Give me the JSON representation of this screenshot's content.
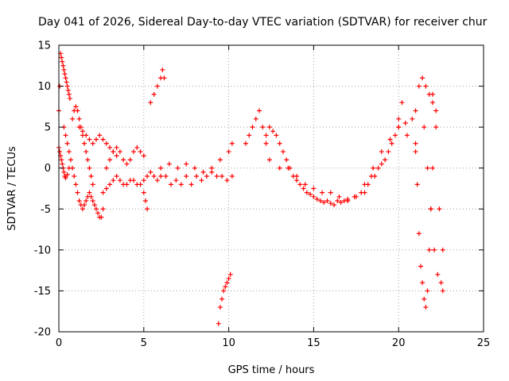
{
  "chart_data": {
    "type": "scatter",
    "title": "Day 041 of 2026, Sidereal Day-to-day VTEC variation (SDTVAR) for receiver chur",
    "xlabel": "GPS time / hours",
    "ylabel": "SDTVAR / TECUs",
    "xlim": [
      0,
      25
    ],
    "ylim": [
      -20,
      15
    ],
    "xticks": [
      0,
      5,
      10,
      15,
      20,
      25
    ],
    "yticks": [
      -20,
      -15,
      -10,
      -5,
      0,
      5,
      10,
      15
    ],
    "xtick_labels": [
      "0",
      "5",
      "10",
      "15",
      "20",
      "25"
    ],
    "ytick_labels": [
      "-20",
      "-15",
      "-10",
      "-5",
      "0",
      "5",
      "10",
      "15"
    ],
    "grid": true,
    "marker": "+",
    "color": "#ff0000",
    "series": [
      {
        "name": "s1",
        "x": [
          0.0,
          0.05,
          0.1,
          0.15,
          0.2,
          0.25,
          0.3,
          0.35,
          0.4,
          0.45,
          0.5,
          0.55,
          0.6,
          0.65
        ],
        "y": [
          7,
          10,
          14,
          13.5,
          13,
          12.5,
          12,
          11.5,
          11,
          10.5,
          10,
          9.5,
          9,
          8.5
        ]
      },
      {
        "name": "s2",
        "x": [
          0.0,
          0.05,
          0.1,
          0.15,
          0.2,
          0.25,
          0.3,
          0.35,
          0.4,
          0.5,
          0.6
        ],
        "y": [
          2.5,
          2,
          1.5,
          1,
          0.5,
          0,
          -0.5,
          -1,
          -1.2,
          -0.8,
          0
        ]
      },
      {
        "name": "s3",
        "x": [
          0.3,
          0.4,
          0.5,
          0.6,
          0.7,
          0.8,
          0.9,
          1.0,
          1.1,
          1.2,
          1.3,
          1.4,
          1.5,
          1.6,
          1.7,
          1.8,
          1.9,
          2.0,
          2.1,
          2.2,
          2.3,
          2.4,
          2.5,
          2.6
        ],
        "y": [
          5,
          4,
          3,
          2,
          1,
          0,
          -1,
          -2,
          -3,
          -4,
          -4.5,
          -5,
          -4.5,
          -4,
          -3.5,
          -3,
          -3.5,
          -4,
          -4.5,
          -5,
          -5.5,
          -6,
          -6,
          -5
        ]
      },
      {
        "name": "s4",
        "x": [
          0.8,
          0.9,
          1.0,
          1.1,
          1.2,
          1.3,
          1.4,
          1.5,
          1.6,
          1.7,
          1.8,
          1.9,
          2.0
        ],
        "y": [
          6,
          7,
          7.5,
          7,
          6,
          5,
          4,
          3,
          2,
          1,
          0,
          -1,
          -2
        ]
      },
      {
        "name": "s5",
        "x": [
          1.2,
          1.4,
          1.6,
          1.8,
          2.0,
          2.2,
          2.4,
          2.6,
          2.8,
          3.0,
          3.2,
          3.4
        ],
        "y": [
          5,
          4.5,
          4,
          3.5,
          3,
          3.5,
          4,
          3.5,
          3,
          2.5,
          2,
          1.5
        ]
      },
      {
        "name": "s6",
        "x": [
          2.6,
          2.8,
          3.0,
          3.2,
          3.4,
          3.6,
          3.8,
          4.0,
          4.2,
          4.4,
          4.6,
          4.8,
          5.0,
          5.2,
          5.4,
          5.6,
          5.8,
          6.0
        ],
        "y": [
          -3,
          -2.5,
          -2,
          -1.5,
          -1,
          -1.5,
          -2,
          -2,
          -1.5,
          -1.5,
          -2,
          -2,
          -1.5,
          -1,
          -0.5,
          -1,
          -1.5,
          -1
        ]
      },
      {
        "name": "s7",
        "x": [
          2.8,
          3.0,
          3.2,
          3.4,
          3.6,
          3.8,
          4.0,
          4.2,
          4.4,
          4.6,
          4.8,
          5.0
        ],
        "y": [
          0,
          1,
          2,
          2.5,
          2,
          1,
          0.5,
          1,
          2,
          2.5,
          2,
          1.5
        ]
      },
      {
        "name": "s8",
        "x": [
          5.0,
          5.1,
          5.2
        ],
        "y": [
          -3,
          -4,
          -5
        ]
      },
      {
        "name": "s9",
        "x": [
          5.4,
          5.6,
          5.8,
          6.0,
          6.1,
          6.2
        ],
        "y": [
          8,
          9,
          10,
          11,
          12,
          11
        ]
      },
      {
        "name": "s10",
        "x": [
          6.0,
          6.3,
          6.6,
          6.9,
          7.2,
          7.5,
          7.8,
          8.1,
          8.4,
          8.7,
          9.0,
          9.3,
          9.6,
          9.9,
          10.2
        ],
        "y": [
          0,
          -1,
          -2,
          -1.5,
          -2,
          -1,
          -2,
          -1,
          -1.5,
          -1,
          -0.5,
          -1,
          -1,
          -1.5,
          -1
        ]
      },
      {
        "name": "s11",
        "x": [
          6.5,
          7.0,
          7.5,
          8.0,
          8.5,
          9.0,
          9.5,
          10.0,
          10.2
        ],
        "y": [
          0.5,
          0,
          0.5,
          0,
          -0.5,
          0,
          1,
          2,
          3
        ]
      },
      {
        "name": "s12",
        "x": [
          9.4,
          9.5,
          9.6,
          9.7,
          9.8,
          9.9,
          10.0,
          10.1
        ],
        "y": [
          -19,
          -17,
          -16,
          -15,
          -14.5,
          -14,
          -13.5,
          -13
        ]
      },
      {
        "name": "s13",
        "x": [
          11.0,
          11.2,
          11.4,
          11.6,
          11.8,
          12.0,
          12.2
        ],
        "y": [
          3,
          4,
          5,
          6,
          7,
          5,
          3
        ]
      },
      {
        "name": "s14",
        "x": [
          12.2,
          12.4,
          12.6,
          12.8,
          13.0,
          13.2,
          13.4,
          13.6,
          13.8,
          14.0,
          14.2,
          14.4,
          14.6,
          14.8,
          15.0,
          15.2,
          15.4,
          15.6,
          15.8,
          16.0,
          16.2,
          16.4,
          16.6,
          16.8,
          17.0
        ],
        "y": [
          4,
          5,
          4.5,
          4,
          3,
          2,
          1,
          0,
          -1,
          -1.5,
          -2,
          -2.5,
          -3,
          -3.2,
          -3.5,
          -3.8,
          -4,
          -4.2,
          -4,
          -4.3,
          -4.5,
          -4,
          -4.2,
          -4,
          -3.8
        ]
      },
      {
        "name": "s15",
        "x": [
          12.4,
          13.0,
          13.5,
          14.0,
          14.5,
          15.0,
          15.5,
          16.0,
          16.5,
          17.0,
          17.5,
          18.0
        ],
        "y": [
          1,
          0,
          0,
          -1,
          -2,
          -2.5,
          -3,
          -3,
          -3.5,
          -4,
          -3.5,
          -3
        ]
      },
      {
        "name": "s16",
        "x": [
          17.0,
          17.4,
          17.8,
          18.2,
          18.6,
          19.0,
          19.4,
          19.8,
          20.0,
          20.2
        ],
        "y": [
          -4,
          -3.5,
          -3,
          -2,
          -1,
          0.5,
          2,
          4,
          6,
          8
        ]
      },
      {
        "name": "s17",
        "x": [
          18.0,
          18.4,
          18.8,
          19.2,
          19.6,
          20.0,
          20.4,
          20.8,
          21.0,
          21.2,
          21.4,
          21.6,
          21.8,
          22.0,
          22.2
        ],
        "y": [
          -2,
          -1,
          0,
          1,
          3,
          5,
          5.5,
          6,
          7,
          10,
          11,
          10,
          9,
          8,
          7
        ]
      },
      {
        "name": "s18",
        "x": [
          18.5,
          19.0,
          19.5,
          20.0,
          20.5,
          21.0
        ],
        "y": [
          0,
          2,
          3.5,
          5,
          4,
          3
        ]
      },
      {
        "name": "s19",
        "x": [
          21.0,
          21.1,
          21.2,
          21.3,
          21.4,
          21.5,
          21.6,
          21.7,
          21.8,
          21.9,
          22.0
        ],
        "y": [
          2,
          -2,
          -8,
          -12,
          -14,
          -16,
          -17,
          -15,
          -10,
          -5,
          0
        ]
      },
      {
        "name": "s20",
        "x": [
          21.5,
          21.7,
          21.9,
          22.1,
          22.3,
          22.5,
          22.6
        ],
        "y": [
          5,
          0,
          -5,
          -10,
          -13,
          -14,
          -15
        ]
      },
      {
        "name": "s21",
        "x": [
          22.0,
          22.2,
          22.4,
          22.6
        ],
        "y": [
          9,
          5,
          -5,
          -10
        ]
      }
    ]
  }
}
